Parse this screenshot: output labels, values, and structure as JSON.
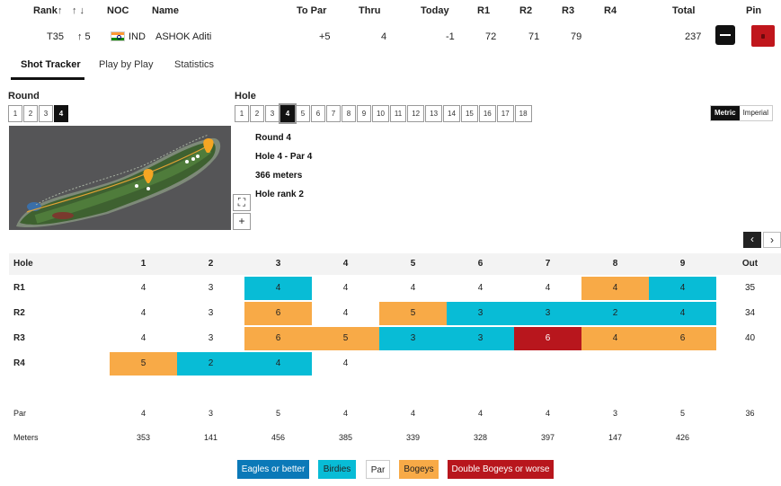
{
  "header": {
    "rank": "Rank",
    "up": "↑",
    "updown": "↑ ↓",
    "noc": "NOC",
    "name": "Name",
    "to_par": "To Par",
    "thru": "Thru",
    "today": "Today",
    "r1": "R1",
    "r2": "R2",
    "r3": "R3",
    "r4": "R4",
    "total": "Total",
    "pin": "Pin"
  },
  "player": {
    "rank": "T35",
    "move": "↑ 5",
    "noc": "IND",
    "name": "ASHOK Aditi",
    "to_par": "+5",
    "thru": "4",
    "today": "-1",
    "r1": "72",
    "r2": "71",
    "r3": "79",
    "r4": "",
    "total": "237"
  },
  "tabs": [
    "Shot Tracker",
    "Play by Play",
    "Statistics"
  ],
  "round_label": "Round",
  "rounds": [
    "1",
    "2",
    "3",
    "4"
  ],
  "hole_label": "Hole",
  "holes": [
    "1",
    "2",
    "3",
    "4",
    "5",
    "6",
    "7",
    "8",
    "9",
    "10",
    "11",
    "12",
    "13",
    "14",
    "15",
    "16",
    "17",
    "18"
  ],
  "units": [
    "Metric",
    "Imperial"
  ],
  "hole_info": {
    "round": "Round 4",
    "hole_par": "Hole 4 - Par 4",
    "distance": "366 meters",
    "rank": "Hole rank 2"
  },
  "map_controls": {
    "expand": "⛶",
    "zoom": "+"
  },
  "nav": {
    "prev": "‹",
    "next": "›"
  },
  "scorecard": {
    "hole_header": "Hole",
    "columns": [
      "1",
      "2",
      "3",
      "4",
      "5",
      "6",
      "7",
      "8",
      "9"
    ],
    "out_header": "Out",
    "rows": [
      {
        "label": "R1",
        "scores": [
          "4",
          "3",
          "4",
          "4",
          "4",
          "4",
          "4",
          "4",
          "4"
        ],
        "types": [
          "par",
          "par",
          "birdie",
          "par",
          "par",
          "par",
          "par",
          "bogey",
          "birdie"
        ],
        "out": "35"
      },
      {
        "label": "R2",
        "scores": [
          "4",
          "3",
          "6",
          "4",
          "5",
          "3",
          "3",
          "2",
          "4"
        ],
        "types": [
          "par",
          "par",
          "bogey",
          "par",
          "bogey",
          "birdie",
          "birdie",
          "birdie",
          "birdie"
        ],
        "out": "34"
      },
      {
        "label": "R3",
        "scores": [
          "4",
          "3",
          "6",
          "5",
          "3",
          "3",
          "6",
          "4",
          "6"
        ],
        "types": [
          "par",
          "par",
          "bogey",
          "bogey",
          "birdie",
          "birdie",
          "dbogey",
          "bogey",
          "bogey"
        ],
        "out": "40"
      },
      {
        "label": "R4",
        "scores": [
          "5",
          "2",
          "4",
          "4",
          "",
          "",
          "",
          "",
          ""
        ],
        "types": [
          "bogey",
          "birdie",
          "birdie",
          "par",
          "",
          "",
          "",
          "",
          ""
        ],
        "out": ""
      }
    ],
    "par_label": "Par",
    "par": [
      "4",
      "3",
      "5",
      "4",
      "4",
      "4",
      "4",
      "3",
      "5"
    ],
    "par_out": "36",
    "meters_label": "Meters",
    "meters": [
      "353",
      "141",
      "456",
      "385",
      "339",
      "328",
      "397",
      "147",
      "426"
    ],
    "meters_out": ""
  },
  "legend": {
    "eagle": "Eagles or better",
    "birdie": "Birdies",
    "par": "Par",
    "bogey": "Bogeys",
    "dbogey": "Double Bogeys or worse"
  },
  "colors": {
    "birdie": "#08bcd6",
    "bogey": "#f8aa47",
    "dbogey": "#b8161d",
    "eagle": "#0b79b8",
    "pin": "#c0161c"
  }
}
